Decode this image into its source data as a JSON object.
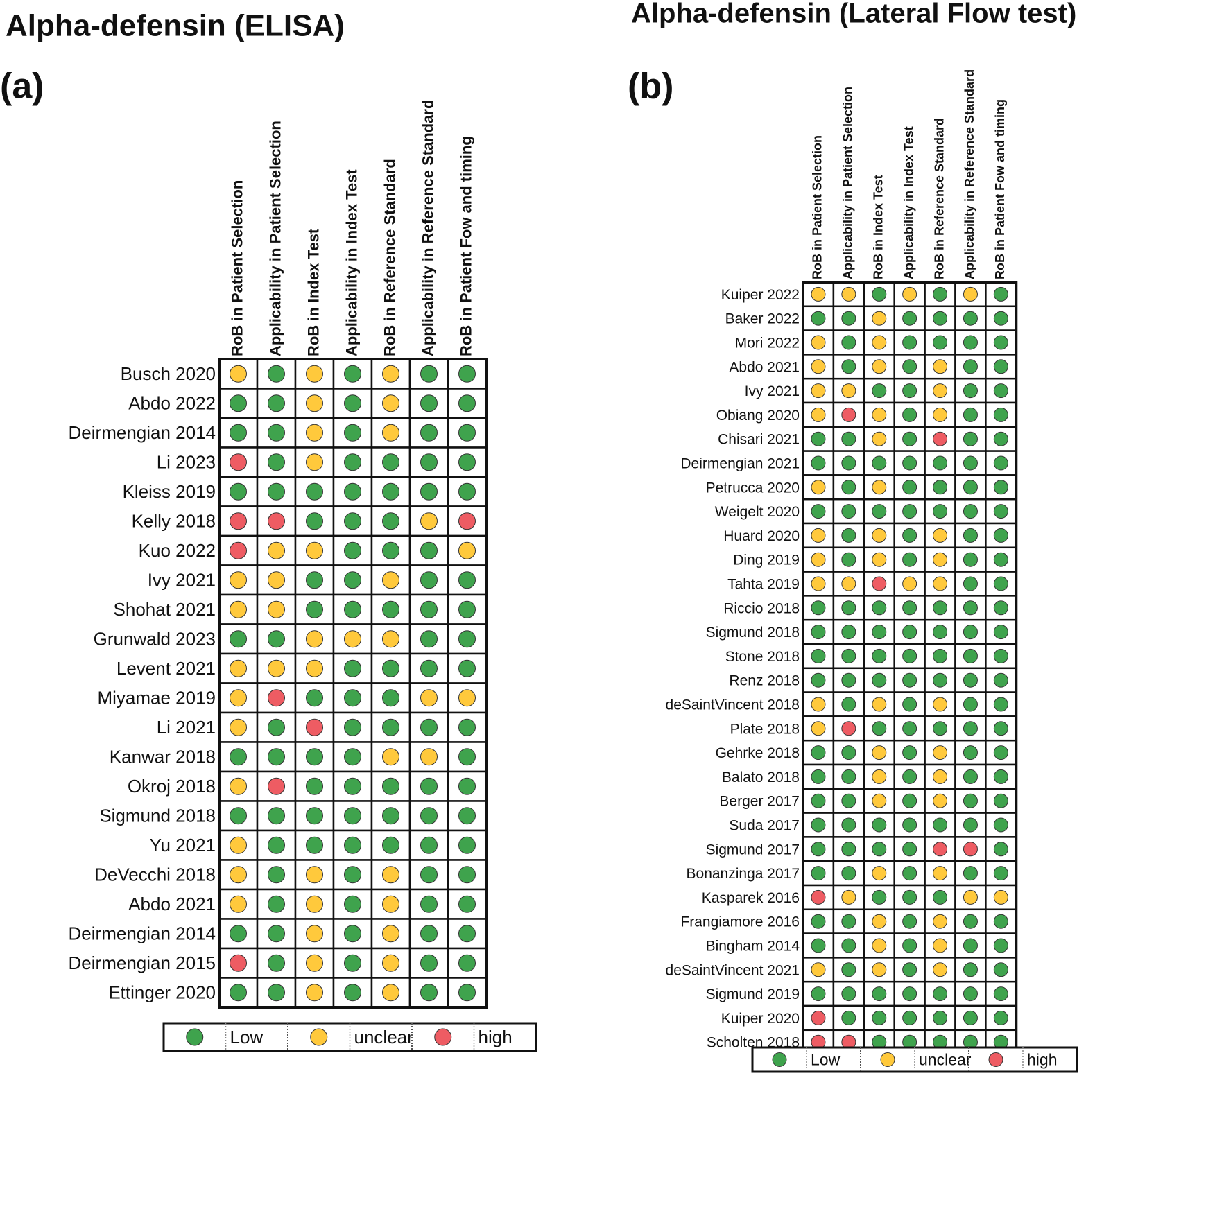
{
  "panels": [
    {
      "title": "Alpha-defensin (ELISA)",
      "label": "(a)",
      "columns": [
        "RoB in Patient Selection",
        "Applicability in Patient Selection",
        "RoB in Index Test",
        "Applicability in Index Test",
        "RoB in Reference Standard",
        "Applicability in Reference Standard",
        "RoB in Patient Fow and timing"
      ],
      "rows": [
        {
          "study": "Busch 2020",
          "ratings": [
            1,
            0,
            1,
            0,
            1,
            0,
            0
          ]
        },
        {
          "study": "Abdo  2022",
          "ratings": [
            0,
            0,
            1,
            0,
            1,
            0,
            0
          ]
        },
        {
          "study": "Deirmengian 2014",
          "ratings": [
            0,
            0,
            1,
            0,
            1,
            0,
            0
          ]
        },
        {
          "study": "Li 2023",
          "ratings": [
            2,
            0,
            1,
            0,
            0,
            0,
            0
          ]
        },
        {
          "study": "Kleiss 2019",
          "ratings": [
            0,
            0,
            0,
            0,
            0,
            0,
            0
          ]
        },
        {
          "study": "Kelly 2018",
          "ratings": [
            2,
            2,
            0,
            0,
            0,
            1,
            2
          ]
        },
        {
          "study": "Kuo 2022",
          "ratings": [
            2,
            1,
            1,
            0,
            0,
            0,
            1
          ]
        },
        {
          "study": "Ivy 2021",
          "ratings": [
            1,
            1,
            0,
            0,
            1,
            0,
            0
          ]
        },
        {
          "study": "Shohat 2021",
          "ratings": [
            1,
            1,
            0,
            0,
            0,
            0,
            0
          ]
        },
        {
          "study": "Grunwald 2023",
          "ratings": [
            0,
            0,
            1,
            1,
            1,
            0,
            0
          ]
        },
        {
          "study": "Levent 2021",
          "ratings": [
            1,
            1,
            1,
            0,
            0,
            0,
            0
          ]
        },
        {
          "study": "Miyamae 2019",
          "ratings": [
            1,
            2,
            0,
            0,
            0,
            1,
            1
          ]
        },
        {
          "study": "Li 2021",
          "ratings": [
            1,
            0,
            2,
            0,
            0,
            0,
            0
          ]
        },
        {
          "study": "Kanwar 2018",
          "ratings": [
            0,
            0,
            0,
            0,
            1,
            1,
            0
          ]
        },
        {
          "study": "Okroj 2018",
          "ratings": [
            1,
            2,
            0,
            0,
            0,
            0,
            0
          ]
        },
        {
          "study": "Sigmund 2018",
          "ratings": [
            0,
            0,
            0,
            0,
            0,
            0,
            0
          ]
        },
        {
          "study": "Yu 2021",
          "ratings": [
            1,
            0,
            0,
            0,
            0,
            0,
            0
          ]
        },
        {
          "study": "DeVecchi 2018",
          "ratings": [
            1,
            0,
            1,
            0,
            1,
            0,
            0
          ]
        },
        {
          "study": "Abdo  2021",
          "ratings": [
            1,
            0,
            1,
            0,
            1,
            0,
            0
          ]
        },
        {
          "study": "Deirmengian 2014",
          "ratings": [
            0,
            0,
            1,
            0,
            1,
            0,
            0
          ]
        },
        {
          "study": "Deirmengian 2015",
          "ratings": [
            2,
            0,
            1,
            0,
            1,
            0,
            0
          ]
        },
        {
          "study": "Ettinger 2020",
          "ratings": [
            0,
            0,
            1,
            0,
            1,
            0,
            0
          ]
        }
      ],
      "legend": [
        {
          "label": "Low",
          "color": "#3fa34d"
        },
        {
          "label": "unclear",
          "color": "#ffc93c"
        },
        {
          "label": "high",
          "color": "#ee5c63"
        }
      ]
    },
    {
      "title": "Alpha-defensin (Lateral Flow test)",
      "label": "(b)",
      "columns": [
        "RoB in Patient Selection",
        "Applicability in Patient Selection",
        "RoB in Index Test",
        "Applicability in Index Test",
        "RoB in Reference Standard",
        "Applicability in Reference Standard",
        "RoB in Patient Fow and timing"
      ],
      "rows": [
        {
          "study": "Kuiper 2022",
          "ratings": [
            1,
            1,
            0,
            1,
            0,
            1,
            0
          ]
        },
        {
          "study": "Baker 2022",
          "ratings": [
            0,
            0,
            1,
            0,
            0,
            0,
            0
          ]
        },
        {
          "study": "Mori 2022",
          "ratings": [
            1,
            0,
            1,
            0,
            0,
            0,
            0
          ]
        },
        {
          "study": "Abdo 2021",
          "ratings": [
            1,
            0,
            1,
            0,
            1,
            0,
            0
          ]
        },
        {
          "study": "Ivy 2021",
          "ratings": [
            1,
            1,
            0,
            0,
            1,
            0,
            0
          ]
        },
        {
          "study": "Obiang 2020",
          "ratings": [
            1,
            2,
            1,
            0,
            1,
            0,
            0
          ]
        },
        {
          "study": "Chisari 2021",
          "ratings": [
            0,
            0,
            1,
            0,
            2,
            0,
            0
          ]
        },
        {
          "study": "Deirmengian 2021",
          "ratings": [
            0,
            0,
            0,
            0,
            0,
            0,
            0
          ]
        },
        {
          "study": "Petrucca 2020",
          "ratings": [
            1,
            0,
            1,
            0,
            0,
            0,
            0
          ]
        },
        {
          "study": "Weigelt 2020",
          "ratings": [
            0,
            0,
            0,
            0,
            0,
            0,
            0
          ]
        },
        {
          "study": "Huard 2020",
          "ratings": [
            1,
            0,
            1,
            0,
            1,
            0,
            0
          ]
        },
        {
          "study": "Ding 2019",
          "ratings": [
            1,
            0,
            1,
            0,
            1,
            0,
            0
          ]
        },
        {
          "study": "Tahta 2019",
          "ratings": [
            1,
            1,
            2,
            1,
            1,
            0,
            0
          ]
        },
        {
          "study": "Riccio 2018",
          "ratings": [
            0,
            0,
            0,
            0,
            0,
            0,
            0
          ]
        },
        {
          "study": "Sigmund 2018",
          "ratings": [
            0,
            0,
            0,
            0,
            0,
            0,
            0
          ]
        },
        {
          "study": "Stone 2018",
          "ratings": [
            0,
            0,
            0,
            0,
            0,
            0,
            0
          ]
        },
        {
          "study": "Renz 2018",
          "ratings": [
            0,
            0,
            0,
            0,
            0,
            0,
            0
          ]
        },
        {
          "study": "deSaintVincent 2018",
          "ratings": [
            1,
            0,
            1,
            0,
            1,
            0,
            0
          ]
        },
        {
          "study": "Plate 2018",
          "ratings": [
            1,
            2,
            0,
            0,
            0,
            0,
            0
          ]
        },
        {
          "study": "Gehrke 2018",
          "ratings": [
            0,
            0,
            1,
            0,
            1,
            0,
            0
          ]
        },
        {
          "study": "Balato 2018",
          "ratings": [
            0,
            0,
            1,
            0,
            1,
            0,
            0
          ]
        },
        {
          "study": "Berger 2017",
          "ratings": [
            0,
            0,
            1,
            0,
            1,
            0,
            0
          ]
        },
        {
          "study": "Suda 2017",
          "ratings": [
            0,
            0,
            0,
            0,
            0,
            0,
            0
          ]
        },
        {
          "study": "Sigmund 2017",
          "ratings": [
            0,
            0,
            0,
            0,
            2,
            2,
            0
          ]
        },
        {
          "study": "Bonanzinga 2017",
          "ratings": [
            0,
            0,
            1,
            0,
            1,
            0,
            0
          ]
        },
        {
          "study": "Kasparek 2016",
          "ratings": [
            2,
            1,
            0,
            0,
            0,
            1,
            1
          ]
        },
        {
          "study": "Frangiamore 2016",
          "ratings": [
            0,
            0,
            1,
            0,
            1,
            0,
            0
          ]
        },
        {
          "study": "Bingham 2014",
          "ratings": [
            0,
            0,
            1,
            0,
            1,
            0,
            0
          ]
        },
        {
          "study": "deSaintVincent 2021",
          "ratings": [
            1,
            0,
            1,
            0,
            1,
            0,
            0
          ]
        },
        {
          "study": "Sigmund 2019",
          "ratings": [
            0,
            0,
            0,
            0,
            0,
            0,
            0
          ]
        },
        {
          "study": "Kuiper 2020",
          "ratings": [
            2,
            0,
            0,
            0,
            0,
            0,
            0
          ]
        },
        {
          "study": "Scholten 2018",
          "ratings": [
            2,
            2,
            0,
            0,
            0,
            0,
            0
          ]
        }
      ],
      "legend": [
        {
          "label": "Low",
          "color": "#3fa34d"
        },
        {
          "label": "unclear",
          "color": "#ffc93c"
        },
        {
          "label": "high",
          "color": "#ee5c63"
        }
      ]
    }
  ]
}
